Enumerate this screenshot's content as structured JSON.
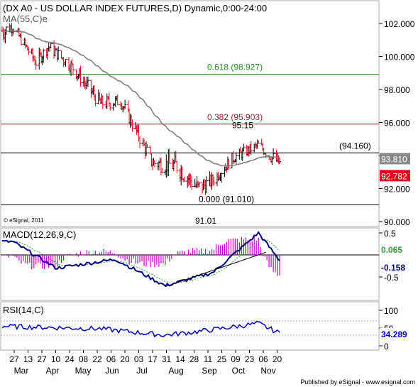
{
  "chart_data": [
    {
      "type": "candlestick",
      "title": "(DX A0 - US DOLLAR INDEX FUTURES,D) Dynamic,0:00-24:00",
      "indicator_label": "MA(55,C)e",
      "copyright": "© eSignal, 2011",
      "ylim": [
        89.5,
        103.3
      ],
      "y_ticks": [
        "102.000",
        "100.000",
        "98.000",
        "96.000",
        "94.000",
        "92.000",
        "90.000"
      ],
      "y_tick_values": [
        102,
        100,
        98,
        96,
        94,
        92,
        90
      ],
      "x_tick_labels": [
        "27",
        "13",
        "27",
        "10",
        "24",
        "08",
        "22",
        "06",
        "20",
        "03",
        "17",
        "31",
        "14",
        "28",
        "11",
        "25",
        "09",
        "23",
        "06",
        "20"
      ],
      "month_labels": [
        "Mar",
        "Apr",
        "May",
        "Jun",
        "Jul",
        "Aug",
        "Sep",
        "Oct",
        "Nov"
      ],
      "key_points": [
        {
          "date": "Mar-01",
          "high": 102.5,
          "low": 100.6
        },
        {
          "date": "Mar-10",
          "high": 102.3,
          "low": 101.3
        },
        {
          "date": "Apr-01",
          "high": 100.3,
          "low": 99.0
        },
        {
          "date": "Apr-13",
          "high": 101.2,
          "low": 100.0
        },
        {
          "date": "May-04",
          "high": 100.1,
          "low": 98.8
        },
        {
          "date": "Jun-01",
          "high": 97.9,
          "low": 96.4
        },
        {
          "date": "Jun-20",
          "high": 97.9,
          "low": 96.7
        },
        {
          "date": "Jul-20",
          "high": 94.3,
          "low": 92.8
        },
        {
          "date": "Aug-12",
          "high": 94.4,
          "low": 92.4
        },
        {
          "date": "Sep-01",
          "high": 93.0,
          "low": 91.01
        },
        {
          "date": "Sep-14",
          "high": 93.1,
          "low": 91.8
        },
        {
          "date": "Oct-04",
          "high": 94.4,
          "low": 93.3
        },
        {
          "date": "Oct-28",
          "high": 95.15,
          "low": 94.1
        },
        {
          "date": "Nov-18",
          "high": 94.2,
          "low": 92.7
        }
      ],
      "horizontal_levels": [
        {
          "label": "0.618 (98.927)",
          "value": 98.927,
          "color": "#1f8f1f"
        },
        {
          "label": "0.382 (95.903)",
          "value": 95.903,
          "color": "#a0202a"
        },
        {
          "label": "(94.160)",
          "value": 94.16,
          "color": "#000000"
        },
        {
          "label": "0.000 (91.010)",
          "value": 91.01,
          "color": "#000000"
        }
      ],
      "annotations": [
        {
          "text": "95.15",
          "value": 95.15
        },
        {
          "text": "91.01",
          "value": 91.01
        }
      ],
      "last_values": [
        {
          "label": "93.810",
          "value": 93.81,
          "color": "#888888"
        },
        {
          "label": "92.782",
          "value": 92.782,
          "color": "#e8001c"
        }
      ]
    },
    {
      "type": "line",
      "title": "MACD(12,26,9,C)",
      "ylim": [
        -0.9,
        0.7
      ],
      "y_ticks": [
        "0.5",
        "-0.5"
      ],
      "y_tick_values": [
        0.5,
        -0.5
      ],
      "series": [
        {
          "name": "MACD",
          "color": "#000080"
        },
        {
          "name": "Signal",
          "color": "#2e9e2e"
        },
        {
          "name": "Histogram",
          "color": "#c000c0"
        }
      ],
      "key_points": [
        {
          "date": "Mar-10",
          "macd": 0.3
        },
        {
          "date": "Apr-20",
          "macd": -0.3
        },
        {
          "date": "Jun-15",
          "macd": -0.1
        },
        {
          "date": "Aug-01",
          "macd": -0.7
        },
        {
          "date": "Sep-15",
          "macd": -0.4
        },
        {
          "date": "Oct-28",
          "macd": 0.5
        },
        {
          "date": "Nov-18",
          "macd": -0.158
        }
      ],
      "last_values": [
        {
          "label": "0.065",
          "value": 0.065,
          "color": "#2e9e2e"
        },
        {
          "label": "-0.158",
          "value": -0.158,
          "color": "#000080"
        }
      ]
    },
    {
      "type": "line",
      "title": "RSI(14,C)",
      "ylim": [
        0,
        100
      ],
      "y_ticks": [
        "100",
        "50",
        "0"
      ],
      "y_tick_values": [
        100,
        50,
        0
      ],
      "series": [
        {
          "name": "RSI",
          "color": "#0000c0"
        }
      ],
      "key_points": [
        {
          "date": "Mar-01",
          "rsi": 55
        },
        {
          "date": "Jun-01",
          "rsi": 48
        },
        {
          "date": "Jul-31",
          "rsi": 30
        },
        {
          "date": "Sep-01",
          "rsi": 40
        },
        {
          "date": "Oct-28",
          "rsi": 63
        },
        {
          "date": "Nov-18",
          "rsi": 34.289
        }
      ],
      "last_values": [
        {
          "label": "34.289",
          "value": 34.289,
          "color": "#0000c0"
        }
      ]
    }
  ],
  "footer": "Published by eSignal - www.esignal.com"
}
